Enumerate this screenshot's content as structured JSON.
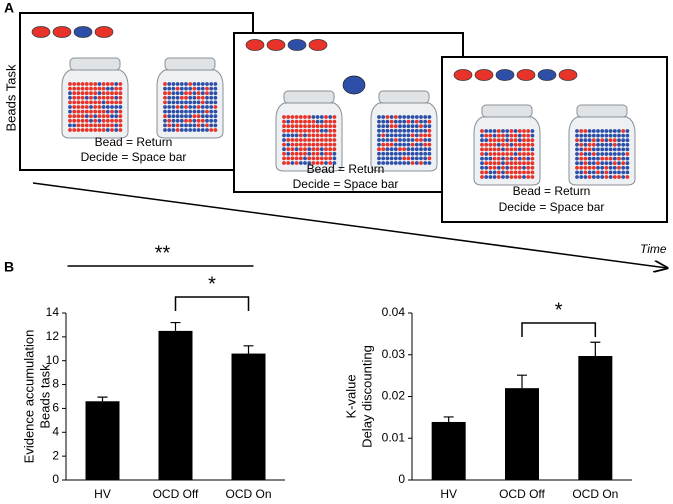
{
  "panel_labels": [
    "A",
    "B"
  ],
  "beads_task": {
    "label": "Beads Task",
    "time_label": "Time",
    "screens": [
      {
        "sequence": [
          "red",
          "red",
          "blue",
          "red"
        ],
        "instructions": [
          "Bead = Return",
          "Decide = Space bar"
        ]
      },
      {
        "sequence": [
          "red",
          "red",
          "blue",
          "red"
        ],
        "drawn_bead": "blue",
        "instructions": [
          "Bead = Return",
          "Decide = Space bar"
        ]
      },
      {
        "sequence": [
          "red",
          "red",
          "blue",
          "red",
          "blue",
          "red"
        ],
        "instructions": [
          "Bead = Return",
          "Decide = Space bar"
        ]
      }
    ],
    "bead_colors": {
      "red": "#e8332a",
      "blue": "#2e4fa8"
    }
  },
  "chart_data": [
    {
      "type": "bar",
      "ylabel": [
        "Evidence accumulation",
        "Beads task"
      ],
      "categories": [
        "HV",
        "OCD Off",
        "OCD On"
      ],
      "values": [
        6.6,
        12.5,
        10.6
      ],
      "errors": [
        0.35,
        0.7,
        0.65
      ],
      "color": "#000000",
      "ylim": [
        0,
        14
      ],
      "yticks": [
        0,
        2,
        4,
        6,
        8,
        10,
        12,
        14
      ],
      "significance": [
        {
          "label": "**",
          "from": 0,
          "to": 2,
          "style": "line"
        },
        {
          "label": "*",
          "from": 1,
          "to": 2,
          "style": "bracket"
        }
      ]
    },
    {
      "type": "bar",
      "ylabel": [
        "K-value",
        "Delay discounting"
      ],
      "categories": [
        "HV",
        "OCD Off",
        "OCD On"
      ],
      "values": [
        0.0139,
        0.022,
        0.0297
      ],
      "errors": [
        0.0012,
        0.0031,
        0.0033
      ],
      "color": "#000000",
      "ylim": [
        0,
        0.04
      ],
      "yticks": [
        0,
        0.01,
        0.02,
        0.03,
        0.04
      ],
      "significance": [
        {
          "label": "*",
          "from": 1,
          "to": 2,
          "style": "bracket"
        }
      ]
    }
  ]
}
